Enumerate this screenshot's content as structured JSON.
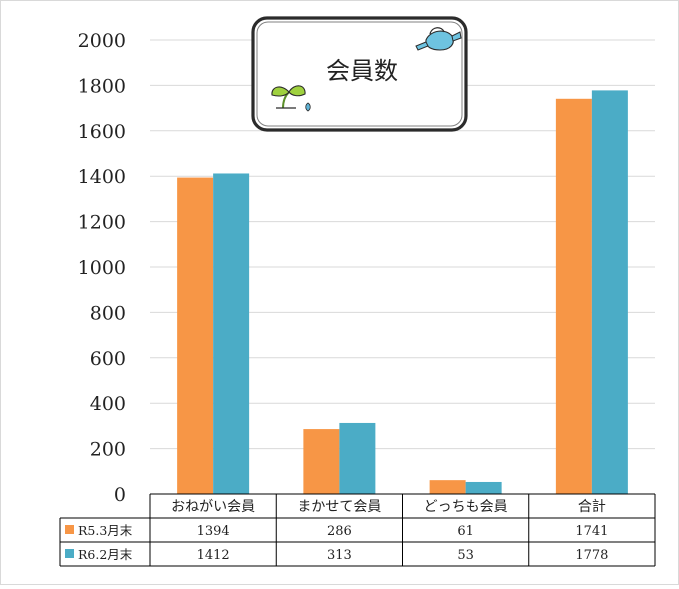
{
  "chart_data": {
    "type": "bar",
    "title": "会員数",
    "categories": [
      "おねがい会員",
      "まかせて会員",
      "どっちも会員",
      "合計"
    ],
    "series": [
      {
        "name": "R5.3月末",
        "values": [
          1394,
          286,
          61,
          1741
        ],
        "color": "#F79646"
      },
      {
        "name": "R6.2月末",
        "values": [
          1412,
          313,
          53,
          1778
        ],
        "color": "#4BACC6"
      }
    ],
    "ylim": [
      0,
      2000
    ],
    "yticks": [
      0,
      200,
      400,
      600,
      800,
      1000,
      1200,
      1400,
      1600,
      1800,
      2000
    ],
    "grid": true,
    "legend": "data-table",
    "decorations": [
      "sprout-icon",
      "watering-can-icon"
    ]
  }
}
